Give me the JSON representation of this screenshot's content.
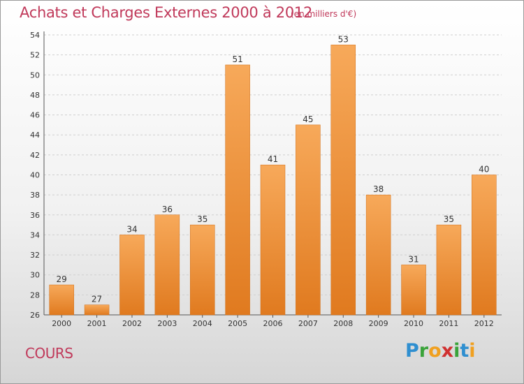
{
  "header": {
    "title": "Achats et Charges Externes 2000 à 2012",
    "subtitle": "(en milliers d'€)"
  },
  "footer": {
    "commune": "COURS",
    "logo_letters": [
      "P",
      "r",
      "o",
      "x",
      "i",
      "t",
      "i"
    ],
    "logo_colors": [
      "#2f8fd0",
      "#3aa33a",
      "#f0a020",
      "#d03030",
      "#3aa33a",
      "#2f8fd0",
      "#f0a020"
    ]
  },
  "colors": {
    "bar_top": "#f7a95a",
    "bar_bottom": "#e07a1f",
    "text": "#c0395a"
  },
  "chart_data": {
    "type": "bar",
    "categories": [
      "2000",
      "2001",
      "2002",
      "2003",
      "2004",
      "2005",
      "2006",
      "2007",
      "2008",
      "2009",
      "2010",
      "2011",
      "2012"
    ],
    "values": [
      29,
      27,
      34,
      36,
      35,
      51,
      41,
      45,
      53,
      38,
      31,
      35,
      40
    ],
    "ylim": [
      26,
      54
    ],
    "yticks": [
      26,
      28,
      30,
      32,
      34,
      36,
      38,
      40,
      42,
      44,
      46,
      48,
      50,
      52,
      54
    ],
    "grid": "horizontal-dashed",
    "xlabel": "",
    "ylabel": ""
  }
}
